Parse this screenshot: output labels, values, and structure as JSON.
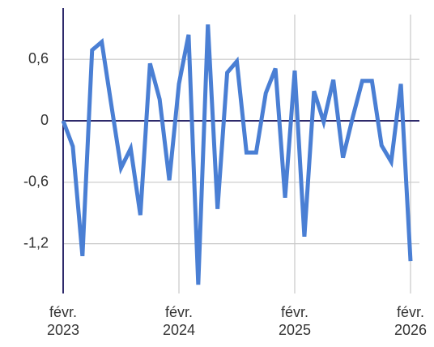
{
  "chart_data": {
    "type": "line",
    "categories": [
      "févr. 2023",
      null,
      null,
      null,
      null,
      null,
      null,
      null,
      null,
      null,
      null,
      null,
      "févr. 2024",
      null,
      null,
      null,
      null,
      null,
      null,
      null,
      null,
      null,
      null,
      null,
      "févr. 2025",
      null,
      null,
      null,
      null,
      null,
      null,
      null,
      null,
      null,
      null,
      null,
      "févr. 2026"
    ],
    "series": [
      {
        "color": "#4a7fd4",
        "values": [
          0,
          -0.25,
          -1.32,
          0.69,
          0.77,
          0.15,
          -0.46,
          -0.27,
          -0.92,
          0.56,
          0.21,
          -0.58,
          0.36,
          0.84,
          -1.6,
          0.94,
          -0.86,
          0.47,
          0.58,
          -0.31,
          -0.31,
          0.27,
          0.51,
          -0.75,
          0.49,
          -1.13,
          0.29,
          -0.01,
          0.4,
          -0.36,
          0.03,
          0.39,
          0.39,
          -0.24,
          -0.4,
          0.36,
          -1.37
        ]
      }
    ],
    "ylim": [
      -1.63,
      1.1
    ],
    "yticks": [
      {
        "value": 0.6,
        "label": "0,6"
      },
      0,
      {
        "value": -0.6,
        "label": "-0,6"
      },
      {
        "value": -1.2,
        "label": "-1,2"
      }
    ],
    "grid": true
  }
}
